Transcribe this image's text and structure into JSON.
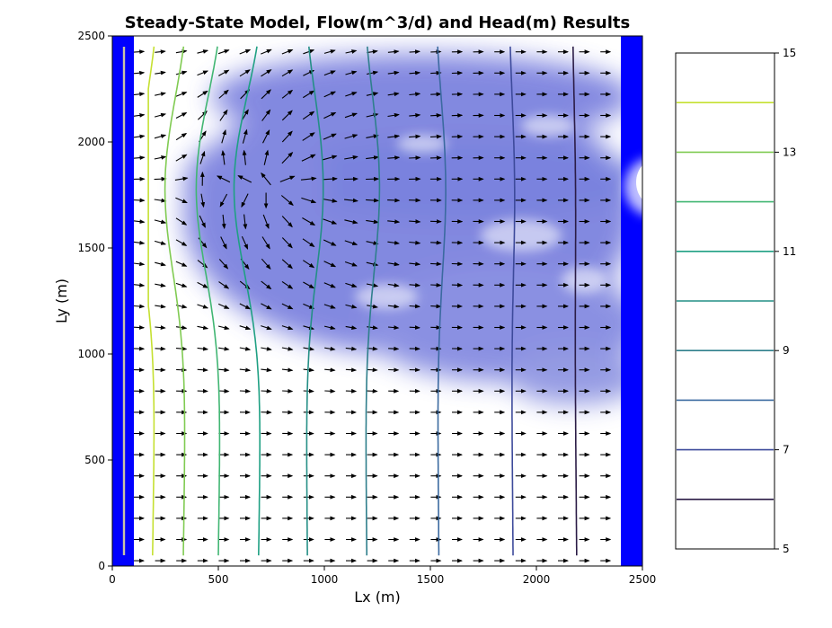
{
  "chart_data": {
    "type": "contour",
    "title": "Steady-State Model, Flow(m^3/d) and Head(m) Results",
    "xlabel": "Lx (m)",
    "ylabel": "Ly (m)",
    "xlim": [
      0,
      2500
    ],
    "ylim": [
      0,
      2500
    ],
    "xticks": [
      "0",
      "500",
      "1000",
      "1500",
      "2000",
      "2500"
    ],
    "yticks": [
      "0",
      "500",
      "1000",
      "1500",
      "2000",
      "2500"
    ],
    "grid": false,
    "colorbar": {
      "range": [
        5,
        15
      ],
      "tick_labels": [
        "5",
        "7",
        "9",
        "11",
        "13",
        "15"
      ],
      "levels": [
        6,
        7,
        8,
        9,
        10,
        11,
        12,
        13,
        14
      ],
      "level_colors": [
        "#2b1c46",
        "#3d4a9b",
        "#3b6aa0",
        "#2f7f8c",
        "#248f86",
        "#1fa083",
        "#41b673",
        "#80cb52",
        "#c5e031"
      ]
    },
    "contour_bottom_x": [
      2190,
      1890,
      1540,
      1200,
      920,
      690,
      500,
      335,
      190
    ],
    "boundaries": {
      "left_constant_head_x": [
        0,
        100
      ],
      "right_constant_head_x": [
        2400,
        2500
      ],
      "well_column_x": 55
    },
    "colors": {
      "boundary": "#0000ff",
      "plume": "#5a62d6",
      "arrows": "#000000",
      "well_line": "#c8c4a4"
    }
  }
}
